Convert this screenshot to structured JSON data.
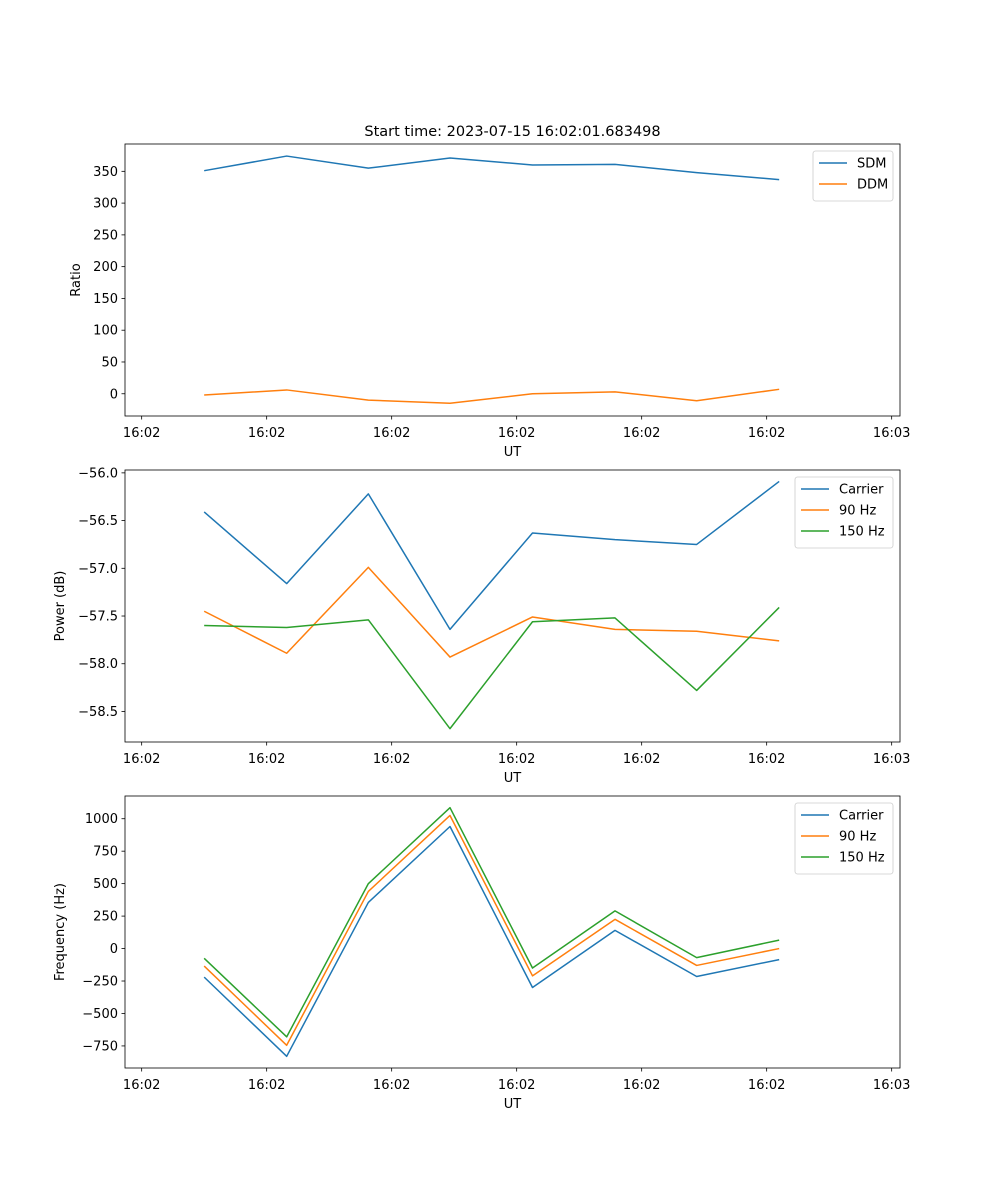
{
  "figure_title": "Start time: 2023-07-15 16:02:01.683498",
  "colors": {
    "blue": "#1f77b4",
    "orange": "#ff7f0e",
    "green": "#2ca02c",
    "axis": "#000000",
    "background": "#ffffff"
  },
  "chart_data": [
    {
      "type": "line",
      "title": "Start time: 2023-07-15 16:02:01.683498",
      "xlabel": "UT",
      "ylabel": "Ratio",
      "xlim": [
        -0.2,
        9.1
      ],
      "ylim": [
        -35,
        393
      ],
      "xticks": [
        0,
        1.5,
        3,
        4.5,
        6,
        7.5,
        9
      ],
      "xtick_labels": [
        "16:02",
        "16:02",
        "16:02",
        "16:02",
        "16:02",
        "16:02",
        "16:03"
      ],
      "yticks": [
        0,
        50,
        100,
        150,
        200,
        250,
        300,
        350
      ],
      "ytick_labels": [
        "0",
        "50",
        "100",
        "150",
        "200",
        "250",
        "300",
        "350"
      ],
      "legend_position": "top-right",
      "x": [
        0.75,
        1.74,
        2.72,
        3.7,
        4.69,
        5.68,
        6.66,
        7.65
      ],
      "series": [
        {
          "name": "SDM",
          "color": "#1f77b4",
          "values": [
            351,
            374,
            355,
            371,
            360,
            361,
            348,
            337
          ]
        },
        {
          "name": "DDM",
          "color": "#ff7f0e",
          "values": [
            -2,
            6,
            -10,
            -15,
            0,
            3,
            -11,
            7
          ]
        }
      ]
    },
    {
      "type": "line",
      "xlabel": "UT",
      "ylabel": "Power (dB)",
      "xlim": [
        -0.2,
        9.1
      ],
      "ylim": [
        -58.82,
        -55.97
      ],
      "xticks": [
        0,
        1.5,
        3,
        4.5,
        6,
        7.5,
        9
      ],
      "xtick_labels": [
        "16:02",
        "16:02",
        "16:02",
        "16:02",
        "16:02",
        "16:02",
        "16:03"
      ],
      "yticks": [
        -58.5,
        -58.0,
        -57.5,
        -57.0,
        -56.5,
        -56.0
      ],
      "ytick_labels": [
        "−58.5",
        "−58.0",
        "−57.5",
        "−57.0",
        "−56.5",
        "−56.0"
      ],
      "legend_position": "top-right",
      "x": [
        0.75,
        1.74,
        2.72,
        3.7,
        4.69,
        5.68,
        6.66,
        7.65
      ],
      "series": [
        {
          "name": "Carrier",
          "color": "#1f77b4",
          "values": [
            -56.41,
            -57.16,
            -56.22,
            -57.64,
            -56.63,
            -56.7,
            -56.75,
            -56.09
          ]
        },
        {
          "name": "90 Hz",
          "color": "#ff7f0e",
          "values": [
            -57.45,
            -57.89,
            -56.99,
            -57.93,
            -57.51,
            -57.64,
            -57.66,
            -57.76
          ]
        },
        {
          "name": "150 Hz",
          "color": "#2ca02c",
          "values": [
            -57.6,
            -57.62,
            -57.54,
            -58.68,
            -57.56,
            -57.52,
            -58.28,
            -57.41
          ]
        }
      ]
    },
    {
      "type": "line",
      "xlabel": "UT",
      "ylabel": "Frequency (Hz)",
      "xlim": [
        -0.2,
        9.1
      ],
      "ylim": [
        -920,
        1175
      ],
      "xticks": [
        0,
        1.5,
        3,
        4.5,
        6,
        7.5,
        9
      ],
      "xtick_labels": [
        "16:02",
        "16:02",
        "16:02",
        "16:02",
        "16:02",
        "16:02",
        "16:03"
      ],
      "yticks": [
        -750,
        -500,
        -250,
        0,
        250,
        500,
        750,
        1000
      ],
      "ytick_labels": [
        "−750",
        "−500",
        "−250",
        "0",
        "250",
        "500",
        "750",
        "1000"
      ],
      "legend_position": "top-right",
      "x": [
        0.75,
        1.74,
        2.72,
        3.7,
        4.69,
        5.68,
        6.66,
        7.65
      ],
      "series": [
        {
          "name": "Carrier",
          "color": "#1f77b4",
          "values": [
            -220,
            -830,
            355,
            940,
            -300,
            140,
            -215,
            -85
          ]
        },
        {
          "name": "90 Hz",
          "color": "#ff7f0e",
          "values": [
            -135,
            -745,
            440,
            1025,
            -210,
            225,
            -130,
            0
          ]
        },
        {
          "name": "150 Hz",
          "color": "#2ca02c",
          "values": [
            -75,
            -680,
            500,
            1085,
            -150,
            290,
            -70,
            65
          ]
        }
      ]
    }
  ]
}
